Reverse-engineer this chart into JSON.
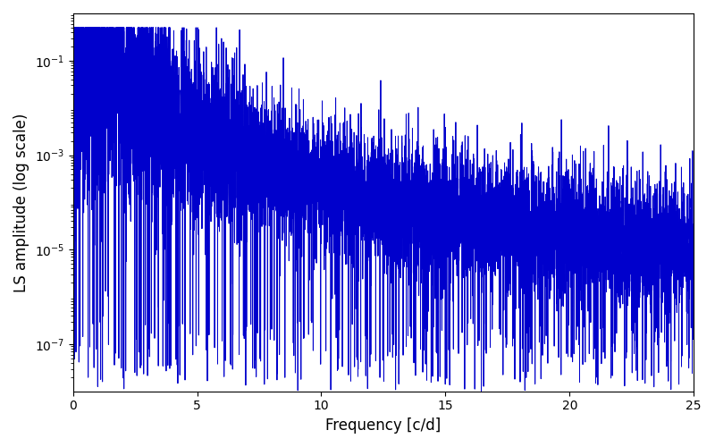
{
  "xlabel": "Frequency [c/d]",
  "ylabel": "LS amplitude (log scale)",
  "xlim": [
    0,
    25
  ],
  "ylim_log": [
    -8,
    0
  ],
  "line_color": "#0000cc",
  "line_width": 0.7,
  "background_color": "#ffffff",
  "figsize": [
    8.0,
    5.0
  ],
  "dpi": 100,
  "freq_max": 25.0,
  "n_points": 8000,
  "seed": 7
}
